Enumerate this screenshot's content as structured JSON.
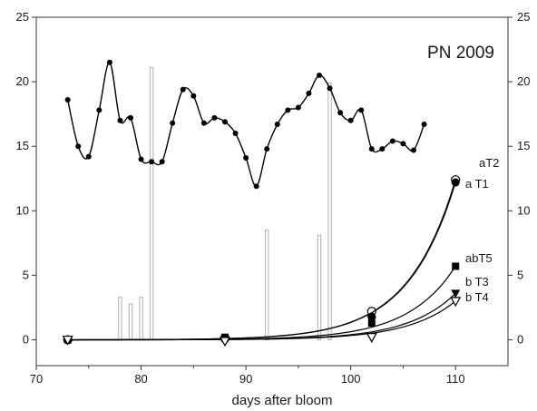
{
  "chart_data": {
    "type": "line",
    "title": "PN 2009",
    "xlabel": "days after bloom",
    "ylabel": "",
    "xlim": [
      70,
      115
    ],
    "ylim": [
      -2,
      25
    ],
    "x_ticks": [
      70,
      80,
      90,
      100,
      110
    ],
    "y_ticks": [
      0,
      5,
      10,
      15,
      20,
      25
    ],
    "grid": false,
    "right_axis_mirrors_left": true,
    "colors": {
      "line": "#000000",
      "bar_stroke": "#b0b0b0",
      "axis": "#333333"
    },
    "temperature_series": {
      "x": [
        73,
        74,
        75,
        76,
        77,
        78,
        79,
        80,
        81,
        82,
        83,
        84,
        85,
        86,
        87,
        88,
        89,
        90,
        91,
        92,
        93,
        94,
        95,
        96,
        97,
        98,
        99,
        100,
        101,
        102,
        103,
        104,
        105,
        106,
        107
      ],
      "y": [
        18.6,
        15.0,
        14.2,
        17.8,
        21.5,
        17.0,
        17.2,
        14.0,
        13.8,
        13.8,
        16.8,
        19.4,
        18.9,
        16.8,
        17.2,
        16.9,
        16.0,
        14.1,
        11.9,
        14.8,
        16.7,
        17.8,
        18.0,
        19.1,
        20.5,
        19.5,
        17.6,
        17.0,
        17.8,
        14.8,
        14.8,
        15.4,
        15.2,
        14.7,
        16.7
      ]
    },
    "rain_bars": {
      "x": [
        78,
        79,
        80,
        81,
        92,
        97,
        98
      ],
      "values": [
        3.3,
        2.8,
        3.3,
        21.1,
        8.5,
        8.1,
        19.9
      ]
    },
    "treatment_series": [
      {
        "name": "T2",
        "label": "aT2",
        "marker": "open-circle",
        "points": [
          {
            "x": 73,
            "y": 0
          },
          {
            "x": 88,
            "y": 0.1
          },
          {
            "x": 102,
            "y": 2.2
          },
          {
            "x": 110,
            "y": 12.4
          }
        ]
      },
      {
        "name": "T1",
        "label": "a T1",
        "marker": "filled-circle",
        "points": [
          {
            "x": 73,
            "y": 0
          },
          {
            "x": 88,
            "y": 0.15
          },
          {
            "x": 102,
            "y": 1.8
          },
          {
            "x": 110,
            "y": 12.2
          }
        ]
      },
      {
        "name": "T5",
        "label": "abT5",
        "marker": "filled-square",
        "points": [
          {
            "x": 73,
            "y": 0
          },
          {
            "x": 88,
            "y": 0.2
          },
          {
            "x": 102,
            "y": 1.3
          },
          {
            "x": 110,
            "y": 5.7
          }
        ]
      },
      {
        "name": "T3",
        "label": "b T3",
        "marker": "filled-triangle-down",
        "points": [
          {
            "x": 73,
            "y": 0
          },
          {
            "x": 88,
            "y": 0.05
          },
          {
            "x": 102,
            "y": 1.5
          },
          {
            "x": 110,
            "y": 3.6
          }
        ]
      },
      {
        "name": "T4",
        "label": "b  T4",
        "marker": "open-triangle-down",
        "points": [
          {
            "x": 73,
            "y": 0
          },
          {
            "x": 88,
            "y": -0.1
          },
          {
            "x": 102,
            "y": 0.2
          },
          {
            "x": 110,
            "y": 3.0
          }
        ]
      }
    ]
  }
}
